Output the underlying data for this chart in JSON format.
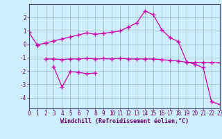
{
  "xlabel": "Windchill (Refroidissement éolien,°C)",
  "background_color": "#cceeff",
  "grid_color": "#9bbfbb",
  "line_color": "#cc00aa",
  "s1x": [
    0,
    1
  ],
  "s1y": [
    0.9,
    -0.05
  ],
  "s2x": [
    1,
    2,
    3,
    4,
    5,
    6,
    7,
    8,
    9,
    10,
    11,
    12,
    13,
    14,
    15,
    16,
    17,
    18,
    19,
    20,
    21,
    22,
    23
  ],
  "s2y": [
    -0.05,
    0.1,
    0.25,
    0.4,
    0.55,
    0.7,
    0.85,
    0.75,
    0.82,
    0.9,
    1.0,
    1.3,
    1.6,
    2.5,
    2.2,
    1.1,
    0.5,
    0.2,
    -1.3,
    -1.5,
    -1.75,
    -4.3,
    -4.5
  ],
  "s3x": [
    2,
    3,
    4,
    5,
    6,
    7,
    8,
    9,
    10,
    11,
    12,
    13,
    14,
    15,
    16,
    17,
    18,
    19,
    20,
    21,
    22,
    23
  ],
  "s3y": [
    -1.1,
    -1.1,
    -1.15,
    -1.1,
    -1.1,
    -1.05,
    -1.1,
    -1.08,
    -1.1,
    -1.05,
    -1.1,
    -1.1,
    -1.1,
    -1.1,
    -1.15,
    -1.2,
    -1.25,
    -1.35,
    -1.35,
    -1.35,
    -1.35,
    -1.38
  ],
  "s4x": [
    3,
    4,
    5,
    6,
    7,
    8
  ],
  "s4y": [
    -1.7,
    -3.2,
    -2.05,
    -2.1,
    -2.2,
    -2.15
  ],
  "ylim": [
    -4.8,
    3.0
  ],
  "xlim": [
    0,
    23
  ],
  "yticks": [
    -4,
    -3,
    -2,
    -1,
    0,
    1,
    2
  ],
  "xticks": [
    0,
    1,
    2,
    3,
    4,
    5,
    6,
    7,
    8,
    9,
    10,
    11,
    12,
    13,
    14,
    15,
    16,
    17,
    18,
    19,
    20,
    21,
    22,
    23
  ],
  "tick_fontsize": 5.5,
  "xlabel_fontsize": 6.0,
  "line_width": 0.9,
  "marker_size": 4
}
